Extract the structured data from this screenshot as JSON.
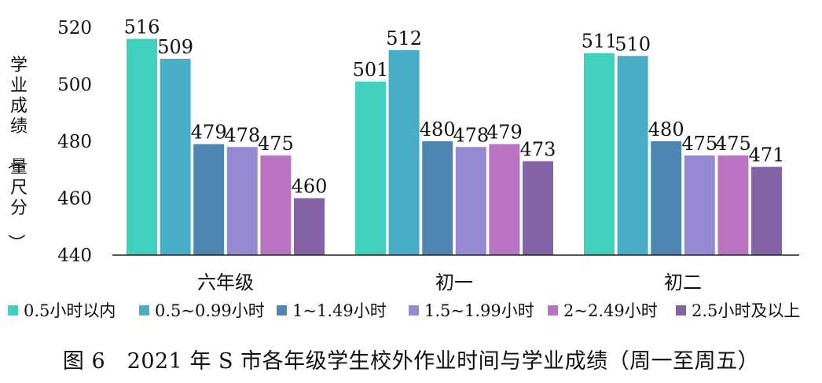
{
  "chart_data": {
    "type": "bar",
    "categories": [
      "六年级",
      "初一",
      "初二"
    ],
    "series": [
      {
        "name": "0.5小时以内",
        "color": "#40D0BD",
        "values": [
          516,
          501,
          511
        ]
      },
      {
        "name": "0.5~0.99小时",
        "color": "#48AEC8",
        "values": [
          509,
          512,
          510
        ]
      },
      {
        "name": "1~1.49小时",
        "color": "#4E86B2",
        "values": [
          479,
          480,
          480
        ]
      },
      {
        "name": "1.5~1.99小时",
        "color": "#9589D3",
        "values": [
          478,
          478,
          475
        ]
      },
      {
        "name": "2~2.49小时",
        "color": "#BA73C0",
        "values": [
          475,
          479,
          475
        ]
      },
      {
        "name": "2.5小时及以上",
        "color": "#8462A6",
        "values": [
          460,
          473,
          471
        ]
      }
    ],
    "ylabel": "学业成绩（量尺分）",
    "ylim": [
      440,
      520
    ],
    "yticks": [
      440,
      460,
      480,
      500,
      520
    ],
    "grid": false,
    "legend_position": "bottom"
  },
  "caption": "图 6　2021 年 S 市各年级学生校外作业时间与学业成绩（周一至周五）"
}
